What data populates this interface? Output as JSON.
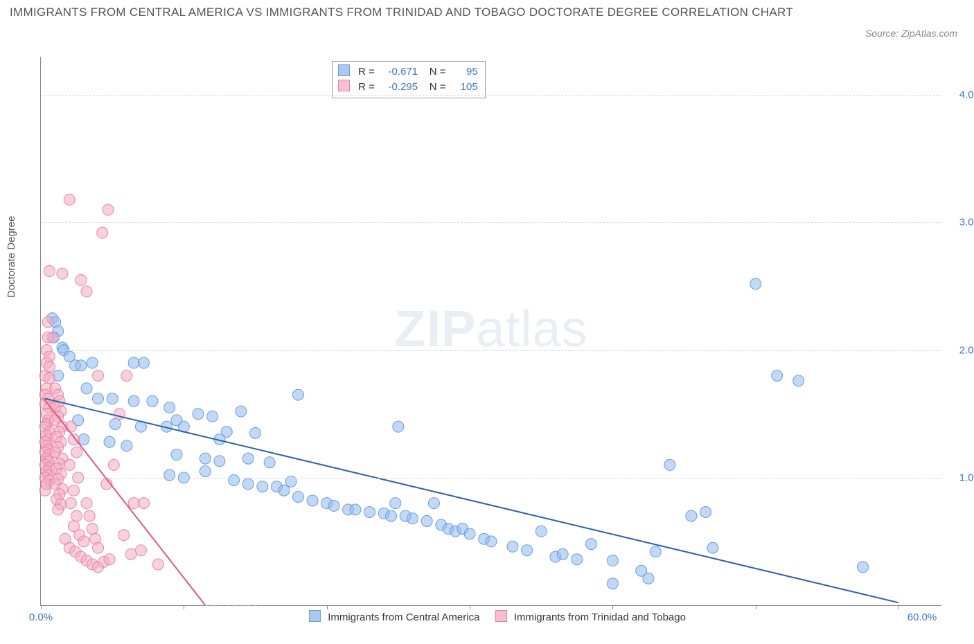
{
  "title": "IMMIGRANTS FROM CENTRAL AMERICA VS IMMIGRANTS FROM TRINIDAD AND TOBAGO DOCTORATE DEGREE CORRELATION CHART",
  "source": "Source: ZipAtlas.com",
  "ylabel": "Doctorate Degree",
  "watermark_bold": "ZIP",
  "watermark_light": "atlas",
  "chart": {
    "type": "scatter-with-regression",
    "background_color": "#ffffff",
    "axis_color": "#888888",
    "grid_color": "#d8d8d8",
    "xlim": [
      0,
      63
    ],
    "ylim": [
      0,
      4.3
    ],
    "y_gridlines": [
      1.0,
      2.0,
      3.0,
      4.0
    ],
    "y_tick_labels": [
      "1.0%",
      "2.0%",
      "3.0%",
      "4.0%"
    ],
    "y_label_color": "#3b74d1",
    "x_tick_marks": [
      0,
      10,
      20,
      30,
      40,
      50,
      60
    ],
    "x_left_label": "0.0%",
    "x_right_label": "60.0%",
    "x_label_color": "#3b74d1",
    "bottom_legend": [
      {
        "label": "Immigrants from Central America",
        "fill": "#aac9ef",
        "stroke": "#6a9de0"
      },
      {
        "label": "Immigrants from Trinidad and Tobago",
        "fill": "#f7bfcf",
        "stroke": "#e985a6"
      }
    ],
    "legend_box": [
      {
        "swatch_fill": "#aac9ef",
        "swatch_stroke": "#6a9de0",
        "r_label": "R =",
        "r_value": "-0.671",
        "n_label": "N =",
        "n_value": "95"
      },
      {
        "swatch_fill": "#f7bfcf",
        "swatch_stroke": "#e985a6",
        "r_label": "R =",
        "r_value": "-0.295",
        "n_label": "N =",
        "n_value": "105"
      }
    ],
    "series": [
      {
        "name": "central-america",
        "marker_fill": "rgba(143,186,236,0.55)",
        "marker_stroke": "#6a9de0",
        "marker_r": 8,
        "regression": {
          "x1": 0.3,
          "y1": 1.62,
          "x2": 60,
          "y2": 0.02,
          "color": "#2d62b7",
          "width": 2
        },
        "points": [
          [
            0.8,
            2.25
          ],
          [
            1.0,
            2.22
          ],
          [
            1.2,
            2.15
          ],
          [
            0.9,
            2.1
          ],
          [
            1.5,
            2.02
          ],
          [
            1.6,
            2.0
          ],
          [
            2.0,
            1.95
          ],
          [
            2.4,
            1.88
          ],
          [
            2.8,
            1.88
          ],
          [
            3.6,
            1.9
          ],
          [
            6.5,
            1.9
          ],
          [
            7.2,
            1.9
          ],
          [
            1.2,
            1.8
          ],
          [
            3.2,
            1.7
          ],
          [
            4.0,
            1.62
          ],
          [
            5.0,
            1.62
          ],
          [
            6.5,
            1.6
          ],
          [
            7.8,
            1.6
          ],
          [
            9.0,
            1.55
          ],
          [
            11.0,
            1.5
          ],
          [
            12.0,
            1.48
          ],
          [
            18.0,
            1.65
          ],
          [
            2.6,
            1.45
          ],
          [
            5.2,
            1.42
          ],
          [
            7.0,
            1.4
          ],
          [
            8.8,
            1.4
          ],
          [
            10.0,
            1.4
          ],
          [
            13.0,
            1.36
          ],
          [
            15.0,
            1.35
          ],
          [
            14.0,
            1.52
          ],
          [
            3.0,
            1.3
          ],
          [
            4.8,
            1.28
          ],
          [
            6.0,
            1.25
          ],
          [
            9.5,
            1.45
          ],
          [
            9.5,
            1.18
          ],
          [
            11.5,
            1.15
          ],
          [
            12.5,
            1.13
          ],
          [
            14.5,
            1.15
          ],
          [
            16.0,
            1.12
          ],
          [
            25.0,
            1.4
          ],
          [
            9.0,
            1.02
          ],
          [
            10.0,
            1.0
          ],
          [
            11.5,
            1.05
          ],
          [
            12.5,
            1.3
          ],
          [
            13.5,
            0.98
          ],
          [
            14.5,
            0.95
          ],
          [
            15.5,
            0.93
          ],
          [
            16.5,
            0.93
          ],
          [
            17.0,
            0.9
          ],
          [
            17.5,
            0.97
          ],
          [
            18.0,
            0.85
          ],
          [
            19.0,
            0.82
          ],
          [
            20.0,
            0.8
          ],
          [
            20.5,
            0.78
          ],
          [
            21.5,
            0.75
          ],
          [
            22.0,
            0.75
          ],
          [
            23.0,
            0.73
          ],
          [
            24.0,
            0.72
          ],
          [
            24.5,
            0.7
          ],
          [
            24.8,
            0.8
          ],
          [
            25.5,
            0.7
          ],
          [
            26.0,
            0.68
          ],
          [
            27.0,
            0.66
          ],
          [
            27.5,
            0.8
          ],
          [
            28.0,
            0.63
          ],
          [
            28.5,
            0.6
          ],
          [
            29.0,
            0.58
          ],
          [
            29.5,
            0.6
          ],
          [
            30.0,
            0.56
          ],
          [
            31.0,
            0.52
          ],
          [
            31.5,
            0.5
          ],
          [
            33.0,
            0.46
          ],
          [
            34.0,
            0.43
          ],
          [
            35.0,
            0.58
          ],
          [
            36.0,
            0.38
          ],
          [
            36.5,
            0.4
          ],
          [
            37.5,
            0.36
          ],
          [
            38.5,
            0.48
          ],
          [
            40.0,
            0.35
          ],
          [
            40.0,
            0.17
          ],
          [
            42.5,
            0.21
          ],
          [
            43.0,
            0.42
          ],
          [
            45.5,
            0.7
          ],
          [
            46.5,
            0.73
          ],
          [
            47.0,
            0.45
          ],
          [
            50.0,
            2.52
          ],
          [
            51.5,
            1.8
          ],
          [
            53.0,
            1.76
          ],
          [
            44.0,
            1.1
          ],
          [
            57.5,
            0.3
          ],
          [
            42.0,
            0.27
          ]
        ]
      },
      {
        "name": "trinidad-tobago",
        "marker_fill": "rgba(243,171,193,0.55)",
        "marker_stroke": "#e985a6",
        "marker_r": 8,
        "regression": {
          "x1": 0.2,
          "y1": 1.62,
          "x2": 11.5,
          "y2": 0.0,
          "color": "#e5567f",
          "width": 2
        },
        "regression_extension": {
          "x1": 11.5,
          "y1": 0.0,
          "x2": 15.5,
          "y2": 0.0,
          "color": "#cccccc",
          "dash": "5,5"
        },
        "points": [
          [
            2.0,
            3.18
          ],
          [
            4.7,
            3.1
          ],
          [
            0.6,
            2.62
          ],
          [
            4.3,
            2.92
          ],
          [
            1.5,
            2.6
          ],
          [
            2.8,
            2.55
          ],
          [
            3.2,
            2.46
          ],
          [
            0.5,
            2.22
          ],
          [
            0.8,
            2.1
          ],
          [
            0.5,
            2.1
          ],
          [
            0.4,
            2.0
          ],
          [
            0.6,
            1.95
          ],
          [
            0.4,
            1.9
          ],
          [
            0.6,
            1.87
          ],
          [
            0.3,
            1.8
          ],
          [
            0.6,
            1.78
          ],
          [
            0.4,
            1.7
          ],
          [
            0.3,
            1.65
          ],
          [
            0.5,
            1.62
          ],
          [
            0.3,
            1.58
          ],
          [
            0.6,
            1.55
          ],
          [
            0.4,
            1.5
          ],
          [
            0.5,
            1.45
          ],
          [
            0.4,
            1.42
          ],
          [
            0.3,
            1.4
          ],
          [
            0.3,
            0.9
          ],
          [
            0.6,
            1.36
          ],
          [
            0.4,
            1.33
          ],
          [
            0.5,
            1.3
          ],
          [
            0.3,
            1.28
          ],
          [
            0.4,
            1.25
          ],
          [
            0.5,
            1.22
          ],
          [
            0.3,
            1.2
          ],
          [
            0.6,
            1.18
          ],
          [
            0.4,
            1.15
          ],
          [
            0.5,
            1.13
          ],
          [
            0.3,
            1.1
          ],
          [
            0.6,
            1.08
          ],
          [
            0.4,
            1.05
          ],
          [
            0.5,
            1.02
          ],
          [
            0.3,
            1.0
          ],
          [
            0.6,
            0.98
          ],
          [
            0.4,
            0.95
          ],
          [
            1.0,
            1.7
          ],
          [
            1.2,
            1.65
          ],
          [
            1.3,
            1.6
          ],
          [
            1.0,
            1.55
          ],
          [
            1.4,
            1.52
          ],
          [
            1.2,
            1.48
          ],
          [
            1.0,
            1.45
          ],
          [
            1.5,
            1.4
          ],
          [
            1.3,
            1.36
          ],
          [
            1.1,
            1.32
          ],
          [
            1.4,
            1.28
          ],
          [
            1.2,
            1.24
          ],
          [
            1.0,
            1.2
          ],
          [
            1.5,
            1.15
          ],
          [
            1.3,
            1.11
          ],
          [
            1.1,
            1.07
          ],
          [
            1.4,
            1.03
          ],
          [
            1.2,
            0.99
          ],
          [
            1.0,
            0.95
          ],
          [
            1.5,
            0.91
          ],
          [
            1.3,
            0.87
          ],
          [
            1.1,
            0.83
          ],
          [
            1.4,
            0.79
          ],
          [
            1.2,
            0.75
          ],
          [
            2.1,
            1.4
          ],
          [
            2.3,
            1.3
          ],
          [
            2.5,
            1.2
          ],
          [
            2.0,
            1.1
          ],
          [
            2.6,
            1.0
          ],
          [
            2.3,
            0.9
          ],
          [
            2.1,
            0.8
          ],
          [
            2.5,
            0.7
          ],
          [
            2.3,
            0.62
          ],
          [
            2.7,
            0.55
          ],
          [
            3.0,
            0.5
          ],
          [
            3.2,
            0.8
          ],
          [
            3.4,
            0.7
          ],
          [
            3.6,
            0.6
          ],
          [
            3.8,
            0.52
          ],
          [
            4.0,
            0.45
          ],
          [
            2.0,
            0.45
          ],
          [
            2.4,
            0.42
          ],
          [
            2.8,
            0.38
          ],
          [
            3.2,
            0.35
          ],
          [
            3.6,
            0.32
          ],
          [
            4.0,
            0.3
          ],
          [
            4.4,
            0.34
          ],
          [
            4.8,
            0.36
          ],
          [
            1.7,
            0.52
          ],
          [
            4.0,
            1.8
          ],
          [
            5.5,
            1.5
          ],
          [
            6.0,
            1.8
          ],
          [
            6.5,
            0.8
          ],
          [
            7.2,
            0.8
          ],
          [
            7.0,
            0.43
          ],
          [
            8.2,
            0.32
          ],
          [
            5.1,
            1.1
          ],
          [
            5.8,
            0.55
          ],
          [
            6.3,
            0.4
          ],
          [
            4.6,
            0.95
          ]
        ]
      }
    ]
  }
}
